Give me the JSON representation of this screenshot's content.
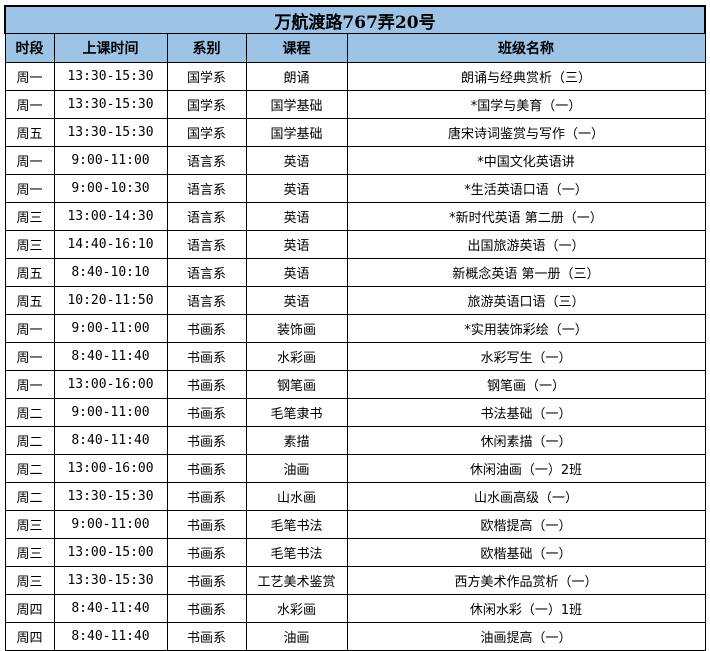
{
  "title": "万航渡路767弄20号",
  "headers": [
    "时段",
    "上课时间",
    "系别",
    "课程",
    "班级名称"
  ],
  "rows": [
    [
      "周一",
      "13:30-15:30",
      "国学系",
      "朗诵",
      "朗诵与经典赏析（三）"
    ],
    [
      "周一",
      "13:30-15:30",
      "国学系",
      "国学基础",
      "*国学与美育（一）"
    ],
    [
      "周五",
      "13:30-15:30",
      "国学系",
      "国学基础",
      "唐宋诗词鉴赏与写作（一）"
    ],
    [
      "周一",
      "9:00-11:00",
      "语言系",
      "英语",
      "*中国文化英语讲"
    ],
    [
      "周一",
      "9:00-10:30",
      "语言系",
      "英语",
      "*生活英语口语（一）"
    ],
    [
      "周三",
      "13:00-14:30",
      "语言系",
      "英语",
      "*新时代英语 第二册（一）"
    ],
    [
      "周三",
      "14:40-16:10",
      "语言系",
      "英语",
      "出国旅游英语（一）"
    ],
    [
      "周五",
      "8:40-10:10",
      "语言系",
      "英语",
      "新概念英语 第一册（三）"
    ],
    [
      "周五",
      "10:20-11:50",
      "语言系",
      "英语",
      "旅游英语口语（三）"
    ],
    [
      "周一",
      "9:00-11:00",
      "书画系",
      "装饰画",
      "*实用装饰彩绘（一）"
    ],
    [
      "周一",
      "8:40-11:40",
      "书画系",
      "水彩画",
      "水彩写生（一）"
    ],
    [
      "周一",
      "13:00-16:00",
      "书画系",
      "钢笔画",
      "钢笔画（一）"
    ],
    [
      "周二",
      "9:00-11:00",
      "书画系",
      "毛笔隶书",
      "书法基础（一）"
    ],
    [
      "周二",
      "8:40-11:40",
      "书画系",
      "素描",
      "休闲素描（一）"
    ],
    [
      "周二",
      "13:00-16:00",
      "书画系",
      "油画",
      "休闲油画（一）2班"
    ],
    [
      "周二",
      "13:30-15:30",
      "书画系",
      "山水画",
      "山水画高级（一）"
    ],
    [
      "周三",
      "9:00-11:00",
      "书画系",
      "毛笔书法",
      "欧楷提高（一）"
    ],
    [
      "周三",
      "13:00-15:00",
      "书画系",
      "毛笔书法",
      "欧楷基础（一）"
    ],
    [
      "周三",
      "13:30-15:30",
      "书画系",
      "工艺美术鉴赏",
      "西方美术作品赏析（一）"
    ],
    [
      "周四",
      "8:40-11:40",
      "书画系",
      "水彩画",
      "休闲水彩（一）1班"
    ],
    [
      "周四",
      "8:40-11:40",
      "书画系",
      "油画",
      "油画提高（一）"
    ]
  ],
  "colors": {
    "header_bg": "#9dc3e6"
  }
}
